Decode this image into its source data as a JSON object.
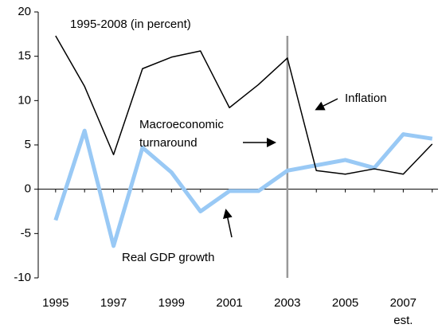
{
  "chart_data": {
    "type": "line",
    "title": "1995-2008 (in percent)",
    "x": [
      1995,
      1996,
      1997,
      1998,
      1999,
      2000,
      2001,
      2002,
      2003,
      2004,
      2005,
      2006,
      2007,
      2008
    ],
    "series": [
      {
        "name": "Inflation",
        "color": "#000000",
        "width": 1.5,
        "values": [
          17.3,
          11.6,
          3.9,
          13.6,
          14.9,
          15.6,
          9.2,
          11.8,
          14.8,
          2.1,
          1.7,
          2.3,
          1.7,
          5.1
        ]
      },
      {
        "name": "Real GDP growth",
        "color": "#99c9f5",
        "width": 5,
        "values": [
          -3.5,
          6.6,
          -6.4,
          4.7,
          1.9,
          -2.5,
          -0.2,
          -0.2,
          2.1,
          2.7,
          3.3,
          2.4,
          6.2,
          5.7
        ]
      }
    ],
    "xlim": [
      1994.4,
      2008.2
    ],
    "xticks": [
      1995,
      1997,
      1999,
      2001,
      2003,
      2005,
      2007
    ],
    "x_note": "est.",
    "ylim": [
      -10,
      20
    ],
    "yticks": [
      -10,
      -5,
      0,
      5,
      10,
      15,
      20
    ],
    "vline": {
      "x": 2003,
      "color": "#999999"
    },
    "annotations": {
      "turnaround": [
        "Macroeconomic",
        "turnaround"
      ]
    },
    "grid": false
  }
}
